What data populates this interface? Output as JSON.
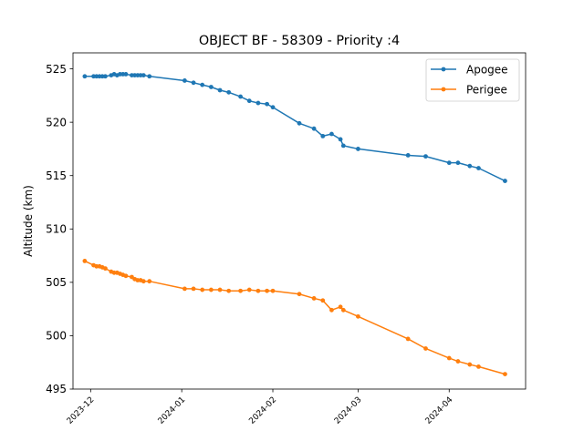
{
  "chart_data": {
    "type": "line",
    "title": "OBJECT BF - 58309 - Priority :4",
    "xlabel": "",
    "ylabel": "Altitude (km)",
    "xlim": [
      "2023-11-25",
      "2024-04-27"
    ],
    "ylim": [
      495,
      526.5
    ],
    "x_ticks": [
      "2023-12",
      "2024-01",
      "2024-02",
      "2024-03",
      "2024-04"
    ],
    "y_ticks": [
      495,
      500,
      505,
      510,
      515,
      520,
      525
    ],
    "grid": false,
    "legend": "top-right",
    "series": [
      {
        "name": "Apogee",
        "color": "#1f77b4",
        "points": [
          [
            "2023-11-29",
            524.3
          ],
          [
            "2023-12-02",
            524.3
          ],
          [
            "2023-12-03",
            524.3
          ],
          [
            "2023-12-04",
            524.3
          ],
          [
            "2023-12-05",
            524.3
          ],
          [
            "2023-12-06",
            524.3
          ],
          [
            "2023-12-08",
            524.4
          ],
          [
            "2023-12-09",
            524.5
          ],
          [
            "2023-12-10",
            524.4
          ],
          [
            "2023-12-11",
            524.5
          ],
          [
            "2023-12-12",
            524.5
          ],
          [
            "2023-12-13",
            524.5
          ],
          [
            "2023-12-15",
            524.4
          ],
          [
            "2023-12-16",
            524.4
          ],
          [
            "2023-12-17",
            524.4
          ],
          [
            "2023-12-18",
            524.4
          ],
          [
            "2023-12-19",
            524.4
          ],
          [
            "2023-12-21",
            524.3
          ],
          [
            "2024-01-02",
            523.9
          ],
          [
            "2024-01-05",
            523.7
          ],
          [
            "2024-01-08",
            523.5
          ],
          [
            "2024-01-11",
            523.3
          ],
          [
            "2024-01-14",
            523.0
          ],
          [
            "2024-01-17",
            522.8
          ],
          [
            "2024-01-21",
            522.4
          ],
          [
            "2024-01-24",
            522.0
          ],
          [
            "2024-01-27",
            521.8
          ],
          [
            "2024-01-30",
            521.7
          ],
          [
            "2024-02-01",
            521.4
          ],
          [
            "2024-02-10",
            519.9
          ],
          [
            "2024-02-15",
            519.4
          ],
          [
            "2024-02-18",
            518.7
          ],
          [
            "2024-02-21",
            518.9
          ],
          [
            "2024-02-24",
            518.4
          ],
          [
            "2024-02-25",
            517.8
          ],
          [
            "2024-03-01",
            517.5
          ],
          [
            "2024-03-18",
            516.9
          ],
          [
            "2024-03-24",
            516.8
          ],
          [
            "2024-04-01",
            516.2
          ],
          [
            "2024-04-04",
            516.2
          ],
          [
            "2024-04-08",
            515.9
          ],
          [
            "2024-04-11",
            515.7
          ],
          [
            "2024-04-20",
            514.5
          ]
        ]
      },
      {
        "name": "Perigee",
        "color": "#ff7f0e",
        "points": [
          [
            "2023-11-29",
            507.0
          ],
          [
            "2023-12-02",
            506.6
          ],
          [
            "2023-12-03",
            506.5
          ],
          [
            "2023-12-04",
            506.5
          ],
          [
            "2023-12-05",
            506.4
          ],
          [
            "2023-12-06",
            506.3
          ],
          [
            "2023-12-08",
            506.0
          ],
          [
            "2023-12-09",
            505.9
          ],
          [
            "2023-12-10",
            505.9
          ],
          [
            "2023-12-11",
            505.8
          ],
          [
            "2023-12-12",
            505.7
          ],
          [
            "2023-12-13",
            505.6
          ],
          [
            "2023-12-15",
            505.5
          ],
          [
            "2023-12-16",
            505.3
          ],
          [
            "2023-12-17",
            505.2
          ],
          [
            "2023-12-18",
            505.2
          ],
          [
            "2023-12-19",
            505.1
          ],
          [
            "2023-12-21",
            505.1
          ],
          [
            "2024-01-02",
            504.4
          ],
          [
            "2024-01-05",
            504.4
          ],
          [
            "2024-01-08",
            504.3
          ],
          [
            "2024-01-11",
            504.3
          ],
          [
            "2024-01-14",
            504.3
          ],
          [
            "2024-01-17",
            504.2
          ],
          [
            "2024-01-21",
            504.2
          ],
          [
            "2024-01-24",
            504.3
          ],
          [
            "2024-01-27",
            504.2
          ],
          [
            "2024-01-30",
            504.2
          ],
          [
            "2024-02-01",
            504.2
          ],
          [
            "2024-02-10",
            503.9
          ],
          [
            "2024-02-15",
            503.5
          ],
          [
            "2024-02-18",
            503.3
          ],
          [
            "2024-02-21",
            502.4
          ],
          [
            "2024-02-24",
            502.7
          ],
          [
            "2024-02-25",
            502.4
          ],
          [
            "2024-03-01",
            501.8
          ],
          [
            "2024-03-18",
            499.7
          ],
          [
            "2024-03-24",
            498.8
          ],
          [
            "2024-04-01",
            497.9
          ],
          [
            "2024-04-04",
            497.6
          ],
          [
            "2024-04-08",
            497.3
          ],
          [
            "2024-04-11",
            497.1
          ],
          [
            "2024-04-20",
            496.4
          ]
        ]
      }
    ]
  }
}
